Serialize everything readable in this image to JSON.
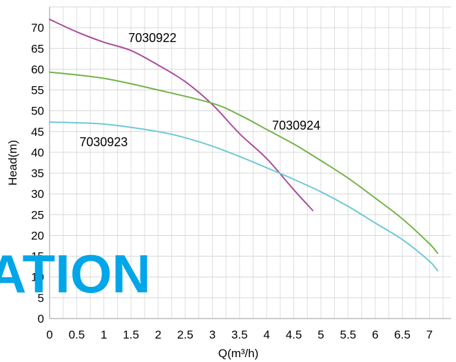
{
  "chart_data": {
    "type": "line",
    "xlabel": "Q(m³/h)",
    "ylabel": "Head(m)",
    "xlim": [
      0,
      7.4
    ],
    "ylim": [
      0,
      75
    ],
    "x_ticks": [
      "0",
      "0.5",
      "1",
      "1.5",
      "2",
      "2.5",
      "3",
      "3.5",
      "4",
      "4.5",
      "5",
      "5.5",
      "6",
      "6.5",
      "7"
    ],
    "y_ticks": [
      "0",
      "5",
      "10",
      "15",
      "20",
      "25",
      "30",
      "35",
      "40",
      "45",
      "50",
      "55",
      "60",
      "65",
      "70"
    ],
    "grid": true,
    "series": [
      {
        "name": "7030922",
        "color": "#a94a9c",
        "points": [
          [
            0,
            72
          ],
          [
            0.5,
            69
          ],
          [
            1,
            66.5
          ],
          [
            1.5,
            64.5
          ],
          [
            2,
            61
          ],
          [
            2.5,
            57
          ],
          [
            3,
            51.5
          ],
          [
            3.5,
            44.5
          ],
          [
            4,
            38.5
          ],
          [
            4.5,
            31
          ],
          [
            4.85,
            26
          ]
        ]
      },
      {
        "name": "7030924",
        "color": "#71b245",
        "points": [
          [
            0,
            59.3
          ],
          [
            1,
            57.8
          ],
          [
            2,
            55
          ],
          [
            3,
            51.8
          ],
          [
            3.5,
            49
          ],
          [
            4,
            45.5
          ],
          [
            4.5,
            42
          ],
          [
            5,
            38
          ],
          [
            5.5,
            33.8
          ],
          [
            6,
            29
          ],
          [
            6.5,
            24
          ],
          [
            7,
            18
          ],
          [
            7.15,
            15.7
          ]
        ]
      },
      {
        "name": "7030923",
        "color": "#6cc8d8",
        "points": [
          [
            0,
            47.3
          ],
          [
            1,
            46.8
          ],
          [
            2,
            45
          ],
          [
            2.5,
            43.5
          ],
          [
            3,
            41.5
          ],
          [
            3.5,
            39
          ],
          [
            4,
            36.3
          ],
          [
            4.5,
            33.5
          ],
          [
            5,
            30.5
          ],
          [
            5.5,
            27
          ],
          [
            6,
            23
          ],
          [
            6.5,
            19
          ],
          [
            7,
            13.8
          ],
          [
            7.15,
            11.5
          ]
        ]
      }
    ],
    "annotations": [
      {
        "text": "7030922",
        "x": 1.45,
        "y": 66.5
      },
      {
        "text": "7030924",
        "x": 4.1,
        "y": 45.5
      },
      {
        "text": "7030923",
        "x": 0.55,
        "y": 41.5
      }
    ],
    "watermark": {
      "text": "ATION",
      "color": "#00a6e8"
    }
  }
}
